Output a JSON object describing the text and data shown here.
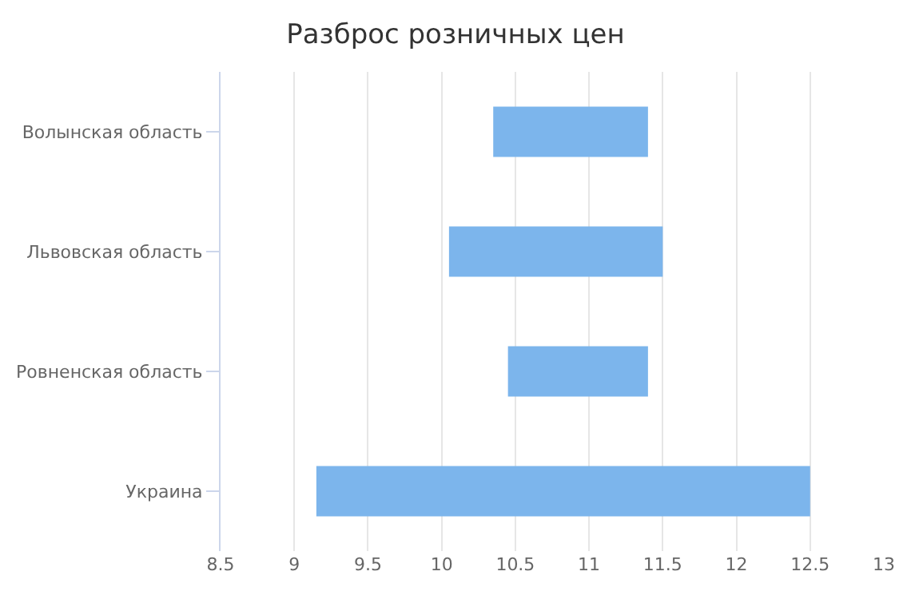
{
  "chart_data": {
    "type": "bar",
    "orientation": "horizontal",
    "title": "Разброс розничных цен",
    "categories": [
      "Волынская область",
      "Львовская область",
      "Ровненская область",
      "Украина"
    ],
    "base": [
      10.35,
      10.05,
      10.45,
      9.15
    ],
    "values": [
      1.05,
      1.45,
      0.95,
      3.35
    ],
    "color": "#7cb5ec",
    "xlim": [
      8.5,
      13
    ],
    "xticks": [
      8.5,
      9,
      9.5,
      10,
      10.5,
      11,
      11.5,
      12,
      12.5,
      13
    ],
    "grid": "x",
    "legend": false
  }
}
